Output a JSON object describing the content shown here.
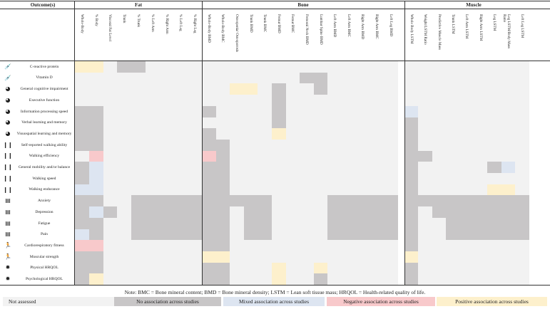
{
  "header": {
    "outcomes_label": "Outcome(s)",
    "groups": [
      {
        "key": "fat",
        "label": "Fat"
      },
      {
        "key": "bone",
        "label": "Bone"
      },
      {
        "key": "muscle",
        "label": "Muscle"
      }
    ]
  },
  "columns": [
    "Whole-Body",
    "% Body",
    "Visceral Fat Level",
    "Trunk",
    "% Trunk",
    "% Left Arm",
    "% Right Arm",
    "% Left Leg",
    "% Right Leg",
    "Whole-Body BMD",
    "Whole-Body BMC",
    "Osteopenia/ Osteoporosis",
    "Trunk BMD",
    "Trunk BMC",
    "Femur BMD",
    "Femur BMC",
    "Femoral Neck BMD",
    "Lumbar Spine BMD",
    "Left Arm BMD",
    "Left Arm BMC",
    "Right Arm BMD",
    "Right Arm BMC",
    "Left Leg BMD",
    "Whole Body LSTM",
    "Weight/LSTM Ratio",
    "Predictive Muscle Mass",
    "Trunk LSTM",
    "Left Arm LSTM",
    "Right Arm LSTM",
    "Leg LSTM",
    "Leg LSTM/Body Mass Ratio",
    "Left Leg LSTM"
  ],
  "rows": [
    {
      "label": "C-reactive protein",
      "icon": "syringe-icon"
    },
    {
      "label": "Vitamin D",
      "icon": "syringe-icon"
    },
    {
      "label": "General cognitive impairment",
      "icon": "head-brain-icon"
    },
    {
      "label": "Executive function",
      "icon": "head-brain-icon"
    },
    {
      "label": "Information processing speed",
      "icon": "head-brain-icon"
    },
    {
      "label": "Verbal learning and memory",
      "icon": "head-brain-icon"
    },
    {
      "label": "Visuospatial learning and memory",
      "icon": "head-brain-icon"
    },
    {
      "label": "Self-reported walking ability",
      "icon": "footprints-icon"
    },
    {
      "label": "Walking efficiency",
      "icon": "footprints-icon"
    },
    {
      "label": "General mobility and/or balance",
      "icon": "footprints-icon"
    },
    {
      "label": "Walking speed",
      "icon": "footprints-icon"
    },
    {
      "label": "Walking endurance",
      "icon": "footprints-icon"
    },
    {
      "label": "Anxiety",
      "icon": "clipboard-icon"
    },
    {
      "label": "Depression",
      "icon": "clipboard-icon"
    },
    {
      "label": "Fatigue",
      "icon": "clipboard-icon"
    },
    {
      "label": "Pain",
      "icon": "clipboard-icon"
    },
    {
      "label": "Cardiorespiratory fitness",
      "icon": "runner-icon"
    },
    {
      "label": "Muscular strength",
      "icon": "runner-icon"
    },
    {
      "label": "Physical HRQOL",
      "icon": "sun-icon"
    },
    {
      "label": "Psychological HRQOL",
      "icon": "sun-icon"
    }
  ],
  "cells": {
    "0": {
      "0": "P",
      "1": "P",
      "3": "N",
      "4": "N"
    },
    "1": {
      "16": "N",
      "17": "N"
    },
    "2": {
      "11": "P",
      "12": "P",
      "14": "N",
      "17": "N"
    },
    "3": {
      "14": "N"
    },
    "4": {
      "0": "N",
      "1": "N",
      "9": "N",
      "14": "N",
      "23": "M"
    },
    "5": {
      "0": "N",
      "1": "N",
      "14": "N",
      "23": "N"
    },
    "6": {
      "0": "N",
      "1": "N",
      "9": "N",
      "14": "P",
      "23": "N"
    },
    "7": {
      "0": "N",
      "1": "N",
      "9": "N",
      "10": "N",
      "23": "N"
    },
    "8": {
      "1": "G",
      "9": "G",
      "10": "N",
      "23": "N",
      "24": "N"
    },
    "9": {
      "0": "N",
      "1": "M",
      "9": "N",
      "10": "N",
      "23": "N",
      "29": "N",
      "30": "M"
    },
    "10": {
      "0": "N",
      "1": "M",
      "9": "N",
      "10": "N",
      "23": "N"
    },
    "11": {
      "0": "M",
      "1": "M",
      "9": "N",
      "10": "N",
      "23": "N",
      "29": "P",
      "30": "P"
    },
    "12": {
      "0": "N",
      "1": "N",
      "4": "N",
      "5": "N",
      "6": "N",
      "7": "N",
      "8": "N",
      "9": "N",
      "10": "N",
      "11": "N",
      "12": "N",
      "13": "N",
      "18": "N",
      "19": "N",
      "20": "N",
      "21": "N",
      "22": "N",
      "23": "N",
      "24": "N",
      "25": "N",
      "26": "N",
      "27": "N",
      "28": "N",
      "29": "N",
      "30": "N",
      "31": "N"
    },
    "13": {
      "0": "N",
      "1": "M",
      "2": "N",
      "4": "N",
      "5": "N",
      "6": "N",
      "7": "N",
      "8": "N",
      "9": "N",
      "10": "N",
      "12": "N",
      "13": "N",
      "18": "N",
      "19": "N",
      "20": "N",
      "21": "N",
      "22": "N",
      "23": "N",
      "25": "N",
      "26": "N",
      "27": "N",
      "28": "N",
      "29": "N",
      "30": "N",
      "31": "N"
    },
    "14": {
      "0": "N",
      "1": "N",
      "4": "N",
      "5": "N",
      "6": "N",
      "7": "N",
      "8": "N",
      "9": "N",
      "10": "N",
      "12": "N",
      "13": "N",
      "18": "N",
      "19": "N",
      "20": "N",
      "21": "N",
      "22": "N",
      "23": "N",
      "26": "N",
      "27": "N",
      "28": "N",
      "29": "N",
      "30": "N",
      "31": "N"
    },
    "15": {
      "0": "M",
      "1": "N",
      "4": "N",
      "5": "N",
      "6": "N",
      "7": "N",
      "8": "N",
      "9": "N",
      "10": "N",
      "12": "N",
      "13": "N",
      "18": "N",
      "19": "N",
      "20": "N",
      "21": "N",
      "22": "N",
      "23": "N",
      "26": "N",
      "27": "N",
      "28": "N",
      "29": "N",
      "30": "N",
      "31": "N"
    },
    "16": {
      "0": "G",
      "1": "G",
      "9": "N",
      "10": "N",
      "23": "N"
    },
    "17": {
      "0": "N",
      "1": "N",
      "9": "P",
      "10": "P",
      "23": "P"
    },
    "18": {
      "0": "N",
      "1": "N",
      "9": "N",
      "10": "N",
      "14": "P",
      "17": "P",
      "23": "N"
    },
    "19": {
      "0": "N",
      "1": "P",
      "9": "N",
      "10": "N",
      "14": "P",
      "17": "N",
      "23": "N"
    }
  },
  "colors": {
    "N": "#c8c6c7",
    "M": "#dde5f1",
    "G": "#f8c9cb",
    "P": "#fdf0cc",
    "blank": "#f2f2f2"
  },
  "note": "Note: BMC = Bone mineral content; BMD = Bone mineral density; LSTM = Lean soft tissue mass; HRQOL = Health-related quality of life.",
  "legend": [
    {
      "key": "blank",
      "label": "Not assessed"
    },
    {
      "key": "N",
      "label": "No association across studies"
    },
    {
      "key": "M",
      "label": "Mixed association across studies"
    },
    {
      "key": "G",
      "label": "Negative association across studies"
    },
    {
      "key": "P",
      "label": "Positive association across studies"
    }
  ]
}
